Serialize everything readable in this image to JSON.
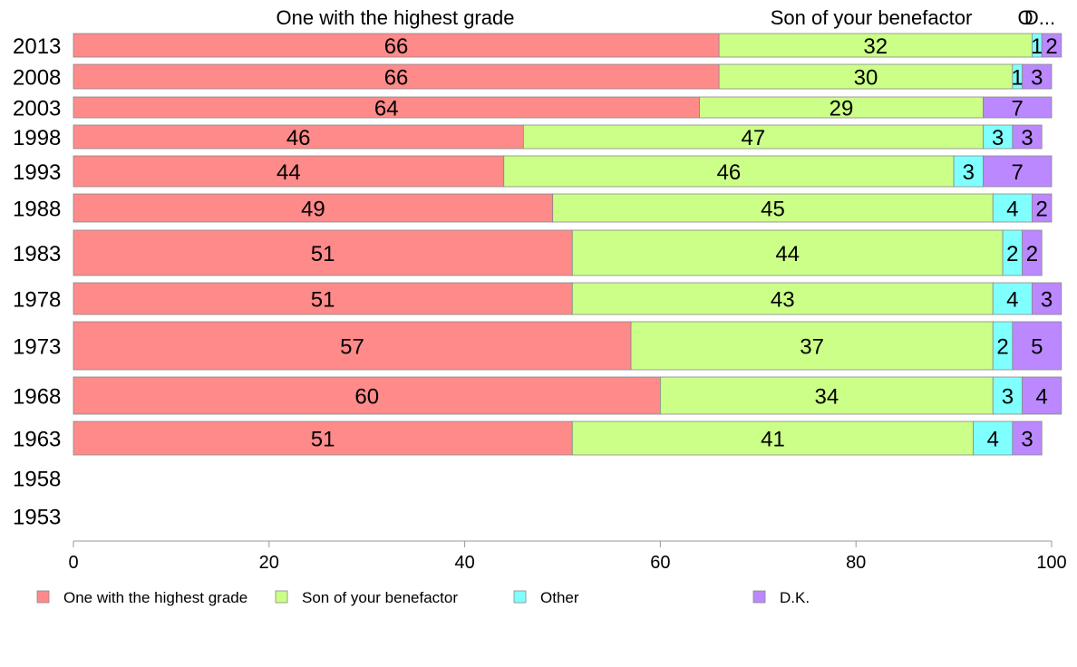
{
  "chart_data": {
    "type": "bar",
    "orientation": "horizontal",
    "stacked": true,
    "categories": [
      "2013",
      "2008",
      "2003",
      "1998",
      "1993",
      "1988",
      "1983",
      "1978",
      "1973",
      "1968",
      "1963",
      "1958",
      "1953"
    ],
    "series": [
      {
        "name": "One with the highest grade",
        "color": "#ff8a8a",
        "values": [
          66,
          66,
          64,
          46,
          44,
          49,
          51,
          51,
          57,
          60,
          51,
          null,
          null
        ]
      },
      {
        "name": "Son of your benefactor",
        "color": "#ccff88",
        "values": [
          32,
          30,
          29,
          47,
          46,
          45,
          44,
          43,
          37,
          34,
          41,
          null,
          null
        ]
      },
      {
        "name": "Other",
        "color": "#80ffff",
        "values": [
          1,
          1,
          0,
          3,
          3,
          4,
          2,
          4,
          2,
          3,
          4,
          null,
          null
        ]
      },
      {
        "name": "D.K.",
        "color": "#bb88ff",
        "values": [
          2,
          3,
          7,
          3,
          7,
          2,
          2,
          3,
          5,
          4,
          3,
          null,
          null
        ]
      }
    ],
    "column_headers": [
      "One with the highest grade",
      "Son of your benefactor",
      "O",
      "D..."
    ],
    "xlim": [
      0,
      100
    ],
    "xticks": [
      "0",
      "20",
      "40",
      "60",
      "80",
      "100"
    ],
    "legend_position": "bottom"
  }
}
